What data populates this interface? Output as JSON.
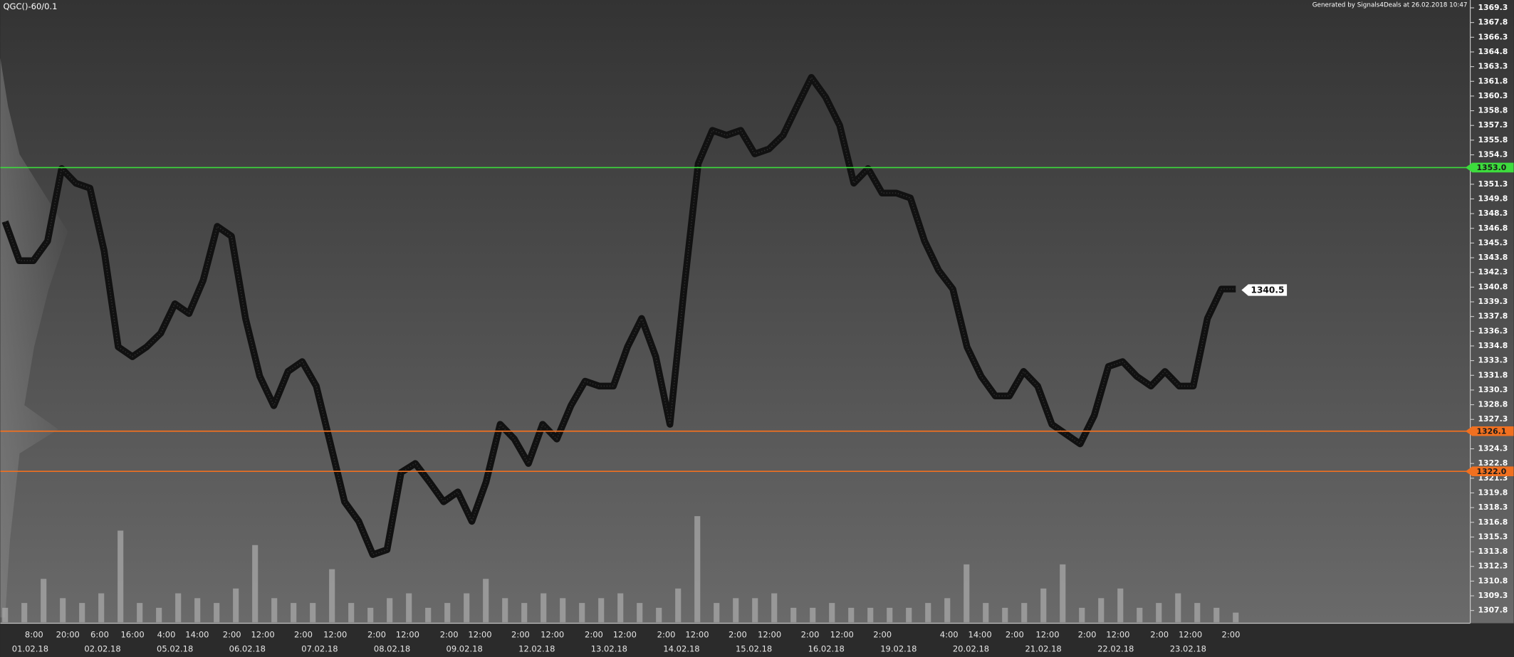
{
  "header": {
    "title": "QGC()-60/0.1",
    "generated": "Generated by Signals4Deals at 26.02.2018 10:47"
  },
  "chart_data": [
    {
      "type": "line",
      "color": "#111111",
      "ylim": [
        1306.6,
        1370.1
      ],
      "yticks": [
        1369.3,
        1367.8,
        1366.3,
        1364.8,
        1363.3,
        1361.8,
        1360.3,
        1358.8,
        1357.3,
        1355.8,
        1354.3,
        1351.3,
        1349.8,
        1348.3,
        1346.8,
        1345.3,
        1343.8,
        1342.3,
        1340.8,
        1339.3,
        1337.8,
        1336.3,
        1334.8,
        1333.3,
        1331.8,
        1330.3,
        1328.8,
        1327.3,
        1324.3,
        1322.8,
        1321.3,
        1319.8,
        1318.3,
        1316.8,
        1315.3,
        1313.8,
        1312.3,
        1310.8,
        1309.3,
        1307.8
      ],
      "values": [
        1347.5,
        1343.5,
        1343.5,
        1345.5,
        1352.9,
        1351.4,
        1350.9,
        1344.5,
        1334.7,
        1333.7,
        1334.7,
        1336.1,
        1339.1,
        1338.1,
        1341.5,
        1347.0,
        1346.0,
        1337.6,
        1331.7,
        1328.7,
        1332.2,
        1333.2,
        1330.7,
        1324.8,
        1318.9,
        1316.9,
        1313.5,
        1314.0,
        1321.9,
        1322.8,
        1320.9,
        1318.9,
        1319.9,
        1316.9,
        1320.9,
        1326.8,
        1325.3,
        1322.8,
        1326.8,
        1325.3,
        1328.7,
        1331.2,
        1330.7,
        1330.7,
        1334.7,
        1337.6,
        1333.7,
        1326.8,
        1340.6,
        1353.4,
        1356.8,
        1356.3,
        1356.8,
        1354.4,
        1354.9,
        1356.3,
        1359.3,
        1362.2,
        1360.2,
        1357.3,
        1351.4,
        1352.9,
        1350.4,
        1350.4,
        1349.9,
        1345.5,
        1342.5,
        1340.6,
        1334.7,
        1331.7,
        1329.7,
        1329.7,
        1332.2,
        1330.7,
        1326.8,
        1325.8,
        1324.8,
        1327.7,
        1332.7,
        1333.2,
        1331.7,
        1330.7,
        1332.2,
        1330.7,
        1330.7,
        1337.6,
        1340.6,
        1340.6
      ],
      "levels": [
        {
          "value": 1353,
          "label": "1353.0",
          "color": "#3ddc3d"
        },
        {
          "value": 1326.1,
          "label": "1326.1",
          "color": "#f07020"
        },
        {
          "value": 1322,
          "label": "1322.0",
          "color": "#f07020"
        }
      ],
      "last": 1340.5,
      "time_labels": [
        "8:00",
        "20:00",
        "6:00",
        "16:00",
        "4:00",
        "14:00",
        "2:00",
        "12:00",
        "2:00",
        "12:00",
        "2:00",
        "12:00",
        "2:00",
        "12:00",
        "2:00",
        "12:00",
        "2:00",
        "12:00",
        "2:00",
        "12:00",
        "2:00",
        "12:00",
        "2:00",
        "12:00",
        "2:00",
        "4:00",
        "14:00",
        "2:00",
        "12:00",
        "2:00",
        "12:00",
        "2:00",
        "12:00",
        "2:00"
      ],
      "date_labels": [
        "01.02.18",
        "02.02.18",
        "05.02.18",
        "06.02.18",
        "07.02.18",
        "08.02.18",
        "09.02.18",
        "12.02.18",
        "13.02.18",
        "14.02.18",
        "15.02.18",
        "16.02.18",
        "19.02.18",
        "20.02.18",
        "21.02.18",
        "22.02.18",
        "23.02.18"
      ]
    },
    {
      "type": "bar",
      "color": "#a8a8a8",
      "ylim": [
        0,
        130
      ],
      "values": [
        15,
        20,
        45,
        25,
        20,
        30,
        95,
        20,
        15,
        30,
        25,
        20,
        35,
        80,
        25,
        20,
        20,
        55,
        20,
        15,
        25,
        30,
        15,
        20,
        30,
        45,
        25,
        20,
        30,
        25,
        20,
        25,
        30,
        20,
        15,
        35,
        110,
        20,
        25,
        25,
        30,
        15,
        15,
        20,
        15,
        15,
        15,
        15,
        20,
        25,
        60,
        20,
        15,
        20,
        35,
        60,
        15,
        25,
        35,
        15,
        20,
        30,
        20,
        15,
        10
      ]
    }
  ]
}
